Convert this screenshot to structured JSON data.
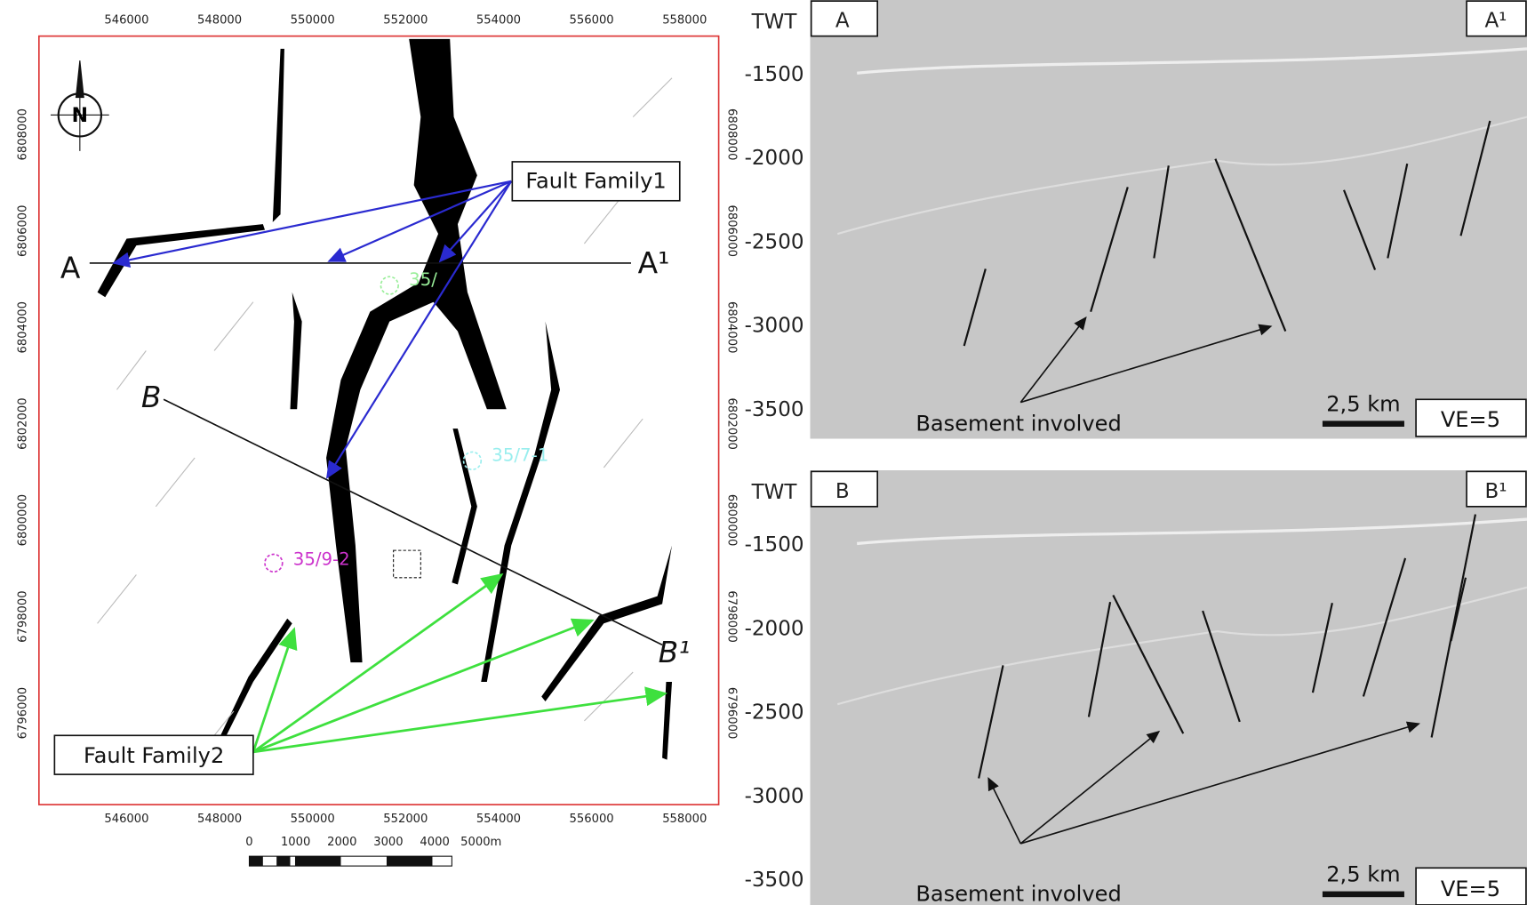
{
  "map": {
    "x_tick_labels": [
      "546000",
      "548000",
      "550000",
      "552000",
      "554000",
      "556000",
      "558000"
    ],
    "y_tick_labels": [
      "6808000",
      "6806000",
      "6804000",
      "6802000",
      "6800000",
      "6798000",
      "6796000"
    ],
    "section_labels": {
      "a_start": "A",
      "a_end": "A¹",
      "b_start": "B",
      "b_end": "B¹"
    },
    "annotations": {
      "fault_family_1": "Fault Family1",
      "fault_family_2": "Fault Family2"
    },
    "wells": {
      "green": "35/",
      "cyan": "35/7-1",
      "magenta": "35/9-2"
    },
    "scale_bar_labels": [
      "0",
      "1000",
      "2000",
      "3000",
      "4000",
      "5000m"
    ]
  },
  "sections": [
    {
      "axis_title": "TWT",
      "tick_labels": [
        "-1500",
        "-2000",
        "-2500",
        "-3000",
        "-3500"
      ],
      "start_label": "A",
      "end_label": "A¹",
      "annotation": "Basement involved",
      "scale": "2,5 km",
      "exaggeration": "VE=5"
    },
    {
      "axis_title": "TWT",
      "tick_labels": [
        "-1500",
        "-2000",
        "-2500",
        "-3000",
        "-3500"
      ],
      "start_label": "B",
      "end_label": "B¹",
      "annotation": "Basement involved",
      "scale": "2,5 km",
      "exaggeration": "VE=5"
    }
  ]
}
